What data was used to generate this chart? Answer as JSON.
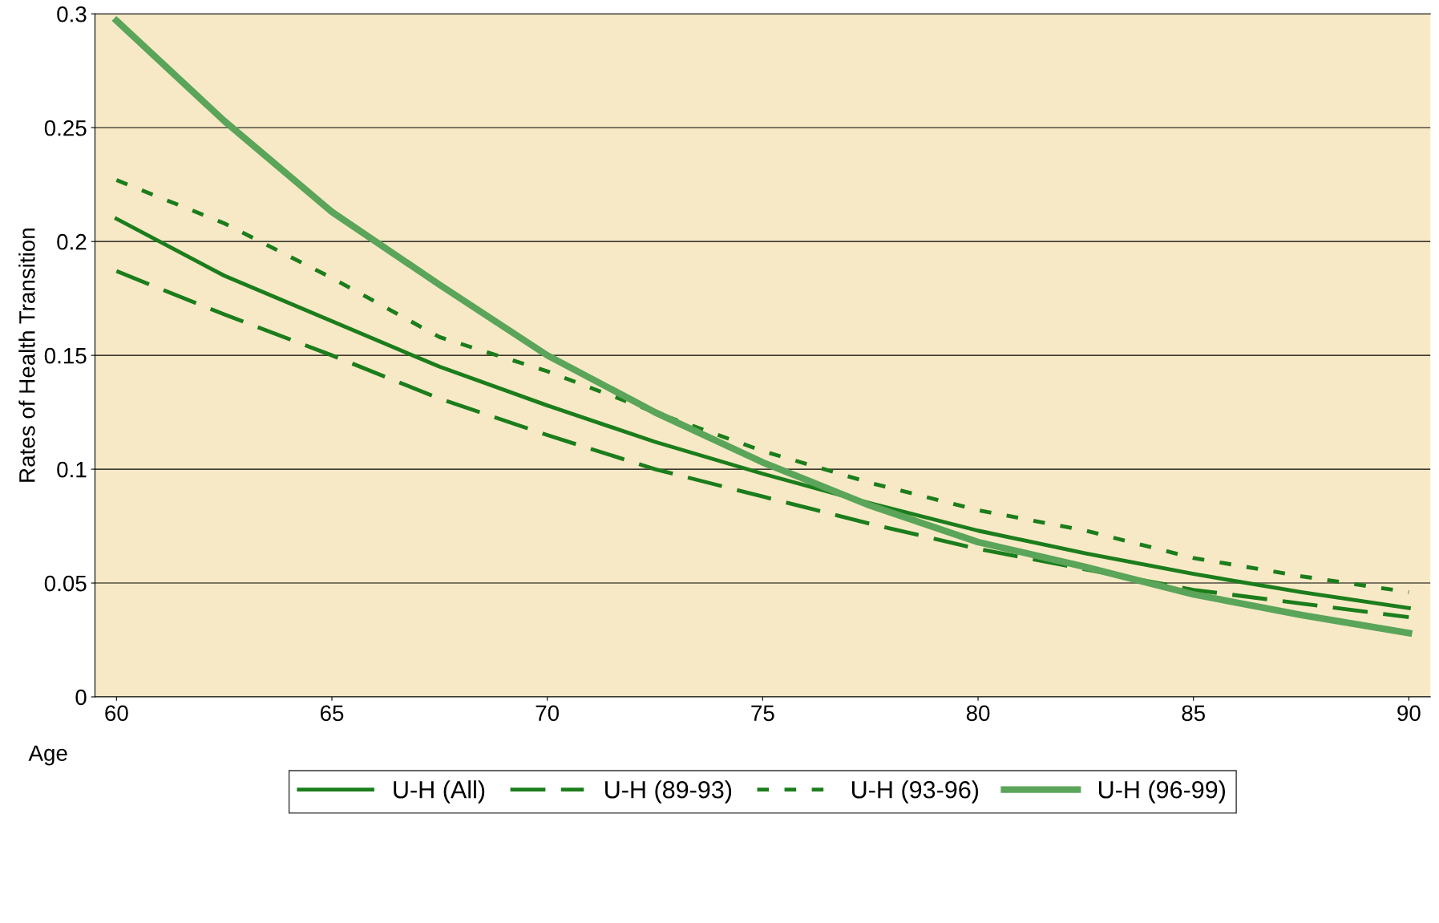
{
  "chart_data": {
    "type": "line",
    "xlabel": "Age",
    "ylabel": "Rates of Health Transition",
    "x": [
      60,
      62.5,
      65,
      67.5,
      70,
      72.5,
      75,
      77.5,
      80,
      82.5,
      85,
      87.5,
      90
    ],
    "series": [
      {
        "name": "U-H (All)",
        "color": "#1b7d1b",
        "line_style": "solid",
        "values": [
          0.21,
          0.185,
          0.165,
          0.145,
          0.128,
          0.112,
          0.098,
          0.085,
          0.073,
          0.063,
          0.054,
          0.046,
          0.039
        ]
      },
      {
        "name": "U-H (89-93)",
        "color": "#1b7d1b",
        "line_style": "dashed",
        "values": [
          0.187,
          0.168,
          0.15,
          0.131,
          0.115,
          0.1,
          0.088,
          0.076,
          0.065,
          0.056,
          0.047,
          0.041,
          0.035
        ]
      },
      {
        "name": "U-H (93-96)",
        "color": "#1b7d1b",
        "line_style": "dotted",
        "values": [
          0.227,
          0.208,
          0.184,
          0.158,
          0.143,
          0.125,
          0.108,
          0.094,
          0.082,
          0.073,
          0.061,
          0.053,
          0.046
        ]
      },
      {
        "name": "U-H (96-99)",
        "color": "#5aa55a",
        "line_style": "solid",
        "values": [
          0.297,
          0.253,
          0.213,
          0.181,
          0.15,
          0.125,
          0.103,
          0.084,
          0.068,
          0.057,
          0.045,
          0.036,
          0.028
        ]
      }
    ],
    "xlim": [
      59.5,
      90.5
    ],
    "xticks": [
      60,
      65,
      70,
      75,
      80,
      85,
      90
    ],
    "ylim": [
      0,
      0.3
    ],
    "yticks": [
      0,
      0.05,
      0.1,
      0.15,
      0.2,
      0.25,
      0.3
    ],
    "grid": "y",
    "legend": "bottom",
    "marker": "none"
  }
}
